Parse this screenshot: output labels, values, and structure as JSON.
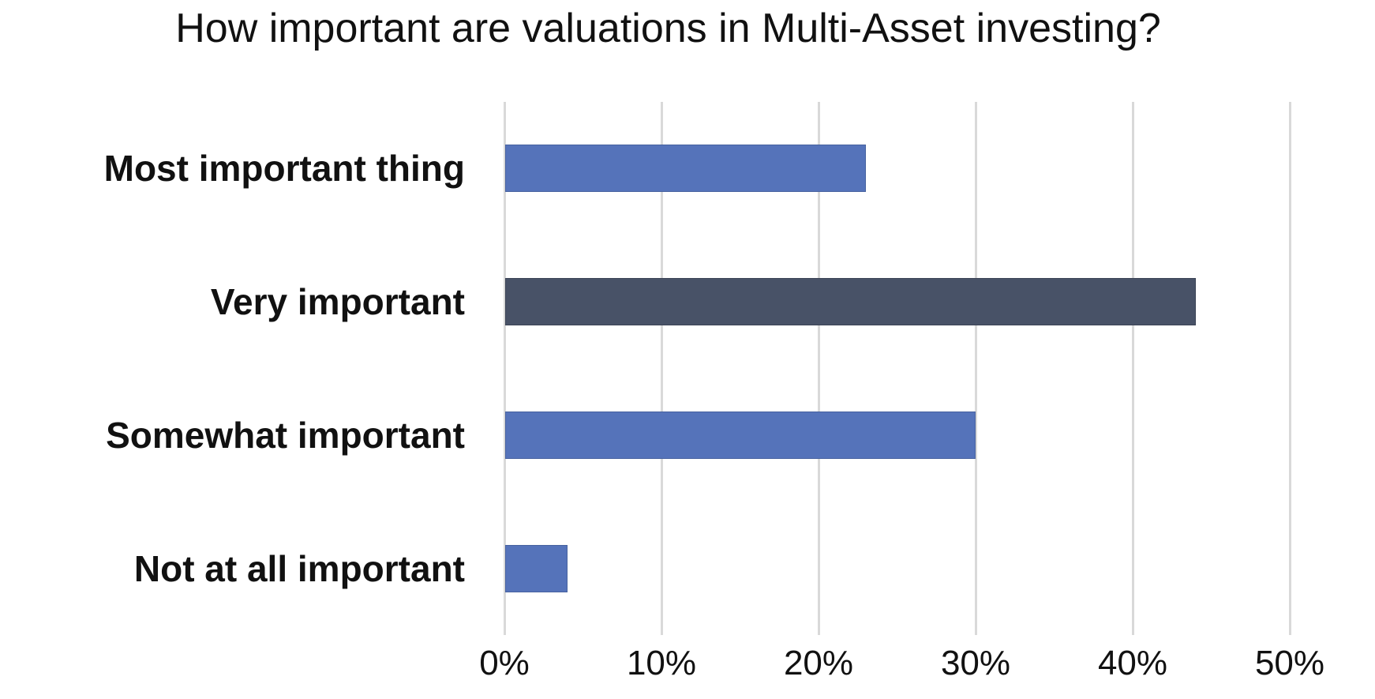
{
  "chart_data": {
    "type": "bar",
    "orientation": "horizontal",
    "title": "How important are valuations in Multi-Asset investing?",
    "categories": [
      "Most important thing",
      "Very important",
      "Somewhat important",
      "Not at all important"
    ],
    "values": [
      23,
      44,
      30,
      4
    ],
    "value_unit": "%",
    "highlighted_category": "Very important",
    "bar_colors": [
      "#5573ba",
      "#485267",
      "#5573ba",
      "#5573ba"
    ],
    "bar_border_colors": [
      "#47629f",
      "#3c4456",
      "#47629f",
      "#47629f"
    ],
    "xlim": [
      0,
      50
    ],
    "x_ticks": [
      0,
      10,
      20,
      30,
      40,
      50
    ],
    "x_tick_labels": [
      "0%",
      "10%",
      "20%",
      "30%",
      "40%",
      "50%"
    ],
    "xlabel": "",
    "ylabel": "",
    "grid": "vertical-gridlines-on",
    "legend": "none",
    "colors": {
      "background": "#ffffff",
      "gridline": "#d9d9d9",
      "text": "#111111"
    }
  }
}
